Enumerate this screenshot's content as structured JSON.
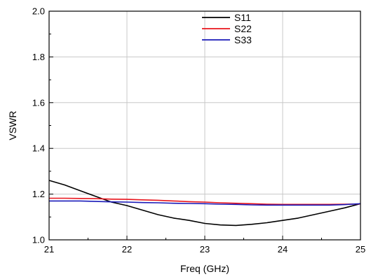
{
  "chart_data": {
    "type": "line",
    "xlabel": "Freq (GHz)",
    "ylabel": "VSWR",
    "xlim": [
      21,
      25
    ],
    "ylim": [
      1.0,
      2.0
    ],
    "xticks": [
      21,
      22,
      23,
      24,
      25
    ],
    "xtick_labels": [
      "21",
      "22",
      "23",
      "24",
      "25"
    ],
    "yticks": [
      1.0,
      1.2,
      1.4,
      1.6,
      1.8,
      2.0
    ],
    "ytick_labels": [
      "1.0",
      "1.2",
      "1.4",
      "1.6",
      "1.8",
      "2.0"
    ],
    "grid": true,
    "legend_position": "top-center",
    "x": [
      21.0,
      21.2,
      21.4,
      21.6,
      21.8,
      22.0,
      22.2,
      22.4,
      22.6,
      22.8,
      23.0,
      23.2,
      23.4,
      23.6,
      23.8,
      24.0,
      24.2,
      24.4,
      24.6,
      24.8,
      25.0
    ],
    "series": [
      {
        "name": "S11",
        "color": "#000000",
        "values": [
          1.26,
          1.24,
          1.215,
          1.19,
          1.165,
          1.15,
          1.13,
          1.11,
          1.095,
          1.085,
          1.072,
          1.065,
          1.063,
          1.068,
          1.075,
          1.085,
          1.095,
          1.11,
          1.125,
          1.14,
          1.158
        ]
      },
      {
        "name": "S22",
        "color": "#e8141c",
        "values": [
          1.182,
          1.182,
          1.181,
          1.18,
          1.178,
          1.177,
          1.175,
          1.173,
          1.17,
          1.167,
          1.165,
          1.162,
          1.16,
          1.158,
          1.156,
          1.155,
          1.155,
          1.155,
          1.155,
          1.156,
          1.157
        ]
      },
      {
        "name": "S33",
        "color": "#1a1ab8",
        "values": [
          1.17,
          1.17,
          1.17,
          1.168,
          1.166,
          1.165,
          1.163,
          1.162,
          1.16,
          1.159,
          1.158,
          1.156,
          1.155,
          1.153,
          1.152,
          1.152,
          1.152,
          1.152,
          1.152,
          1.154,
          1.158
        ]
      }
    ]
  }
}
